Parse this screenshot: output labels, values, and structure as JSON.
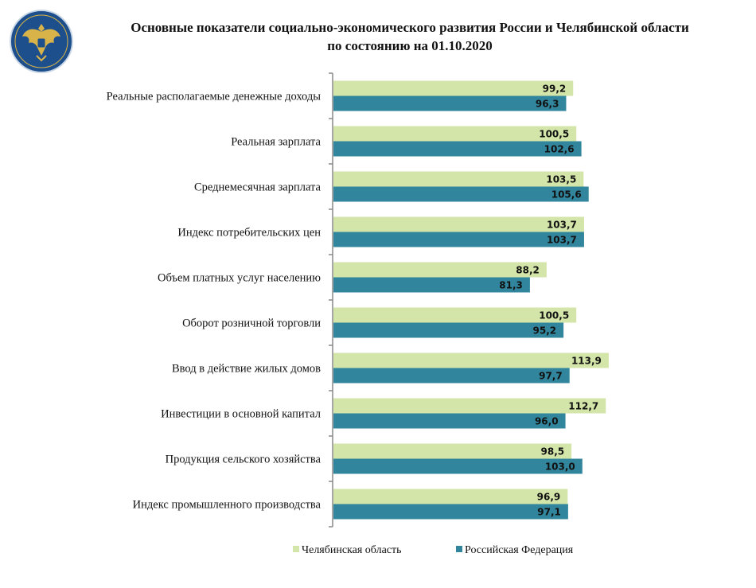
{
  "chart_data": {
    "type": "bar",
    "orientation": "horizontal",
    "title": "Основные показатели социально-экономического развития России и Челябинской области",
    "subtitle": "по состоянию на 01.10.2020",
    "categories": [
      "Реальные располагаемые денежные доходы",
      "Реальная зарплата",
      "Среднемесячная зарплата",
      "Индекс потребительских цен",
      "Объем платных услуг  населению",
      "Оборот розничной торговли",
      "Ввод в действие жилых домов",
      "Инвестиции в основной капитал",
      "Продукция  сельского хозяйства",
      "Индекс промышленного производства"
    ],
    "series": [
      {
        "name": "Челябинская  область",
        "color": "#d3e5a8",
        "values": [
          99.2,
          100.5,
          103.5,
          103.7,
          88.2,
          100.5,
          113.9,
          112.7,
          98.5,
          96.9
        ],
        "labels": [
          "99,2",
          "100,5",
          "103,5",
          "103,7",
          "88,2",
          "100,5",
          "113,9",
          "112,7",
          "98,5",
          "96,9"
        ]
      },
      {
        "name": "Российская  Федерация",
        "color": "#31859c",
        "values": [
          96.3,
          102.6,
          105.6,
          103.7,
          81.3,
          95.2,
          97.7,
          96.0,
          103.0,
          97.1
        ],
        "labels": [
          "96,3",
          "102,6",
          "105,6",
          "103,7",
          "81,3",
          "95,2",
          "97,7",
          "96,0",
          "103,0",
          "97,1"
        ]
      }
    ],
    "xlim": [
      0,
      175
    ],
    "grid": false,
    "legend_placement": "bottom",
    "data_labels": true
  },
  "logo": {
    "icon": "double-headed-eagle-emblem",
    "colors": {
      "background": "#1d4f8c",
      "emblem": "#d8b34a"
    }
  }
}
